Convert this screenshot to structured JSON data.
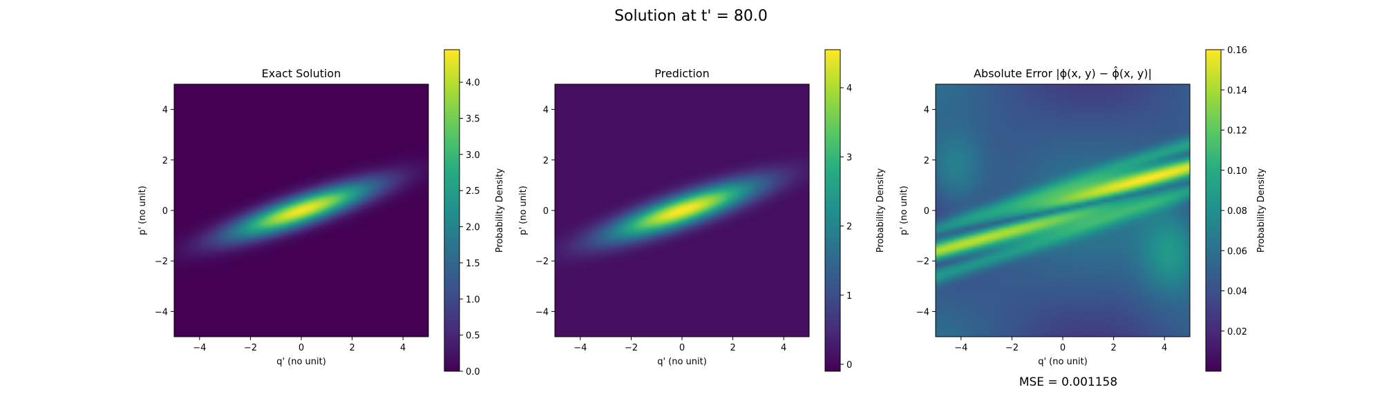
{
  "figure": {
    "suptitle": "Solution at t' = 80.0",
    "mse_text": "MSE = 0.001158"
  },
  "chart_data": [
    {
      "type": "heatmap",
      "title": "Exact Solution",
      "xlabel": "q' (no unit)",
      "ylabel": "p' (no unit)",
      "xlim": [
        -5,
        5
      ],
      "ylim": [
        -5,
        5
      ],
      "x_ticks": [
        -4,
        -2,
        0,
        2,
        4
      ],
      "y_ticks": [
        -4,
        -2,
        0,
        2,
        4
      ],
      "colorbar": {
        "label": "Probability Density",
        "range": [
          0,
          4.45
        ],
        "ticks": [
          0.0,
          0.5,
          1.0,
          1.5,
          2.0,
          2.5,
          3.0,
          3.5,
          4.0
        ],
        "tick_labels": [
          "0.0",
          "0.5",
          "1.0",
          "1.5",
          "2.0",
          "2.5",
          "3.0",
          "3.5",
          "4.0"
        ]
      },
      "colormap": "viridis",
      "peak_value": 4.4
    },
    {
      "type": "heatmap",
      "title": "Prediction",
      "xlabel": "q' (no unit)",
      "ylabel": "p' (no unit)",
      "xlim": [
        -5,
        5
      ],
      "ylim": [
        -5,
        5
      ],
      "x_ticks": [
        -4,
        -2,
        0,
        2,
        4
      ],
      "y_ticks": [
        -4,
        -2,
        0,
        2,
        4
      ],
      "colorbar": {
        "label": "Probability Density",
        "range": [
          -0.1,
          4.55
        ],
        "ticks": [
          0,
          1,
          2,
          3,
          4
        ],
        "tick_labels": [
          "0",
          "1",
          "2",
          "3",
          "4"
        ]
      },
      "colormap": "viridis",
      "peak_value": 4.5
    },
    {
      "type": "heatmap",
      "title": "Absolute Error |ϕ(x, y) − ϕ̂(x, y)|",
      "xlabel": "q' (no unit)",
      "ylabel": "p' (no unit)",
      "xlim": [
        -5,
        5
      ],
      "ylim": [
        -5,
        5
      ],
      "x_ticks": [
        -4,
        -2,
        0,
        2,
        4
      ],
      "y_ticks": [
        -4,
        -2,
        0,
        2,
        4
      ],
      "colorbar": {
        "label": "Probability Density",
        "range": [
          0.0,
          0.16
        ],
        "ticks": [
          0.02,
          0.04,
          0.06,
          0.08,
          0.1,
          0.12,
          0.14,
          0.16
        ],
        "tick_labels": [
          "0.02",
          "0.04",
          "0.06",
          "0.08",
          "0.10",
          "0.12",
          "0.14",
          "0.16"
        ]
      },
      "colormap": "viridis",
      "peak_value": 0.16
    }
  ]
}
